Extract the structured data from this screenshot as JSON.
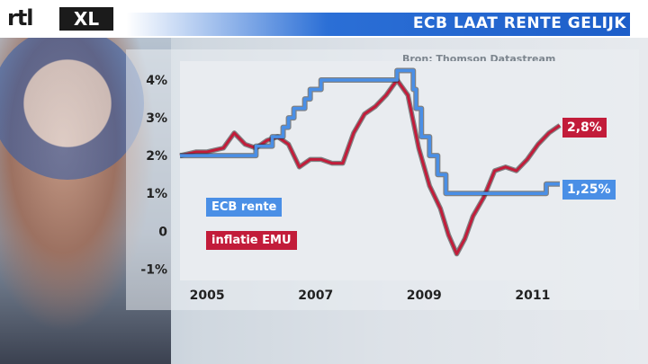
{
  "header": {
    "title": "ECB LAAT RENTE GELIJK",
    "logo_part1": "rtl",
    "logo_part2": "XL"
  },
  "source": "Bron: Thomson Datastream",
  "legend": {
    "ecb": "ECB rente",
    "inflation": "inflatie EMU"
  },
  "end_labels": {
    "inflation": "2,8%",
    "ecb": "1,25%"
  },
  "colors": {
    "ecb": "#4a8fe6",
    "inflation": "#c21c3a",
    "title_bar": "#1d5ec9"
  },
  "chart_data": {
    "type": "line",
    "title": "ECB LAAT RENTE GELIJK",
    "xlabel": "",
    "ylabel": "",
    "x_ticks": [
      "2005",
      "2007",
      "2009",
      "2011"
    ],
    "y_ticks": [
      "4%",
      "3%",
      "2%",
      "1%",
      "0",
      "-1%"
    ],
    "y_tick_values": [
      4,
      3,
      2,
      1,
      0,
      -1
    ],
    "xlim": [
      2004.5,
      2011.5
    ],
    "ylim": [
      -1.3,
      4.5
    ],
    "grid": false,
    "series": [
      {
        "name": "ECB rente",
        "kind": "step",
        "x": [
          2004.5,
          2005.9,
          2006.2,
          2006.4,
          2006.5,
          2006.6,
          2006.8,
          2006.9,
          2007.1,
          2007.5,
          2008.5,
          2008.8,
          2008.85,
          2008.95,
          2009.1,
          2009.25,
          2009.4,
          2011.25,
          2011.5
        ],
        "y": [
          2.0,
          2.25,
          2.5,
          2.75,
          3.0,
          3.25,
          3.5,
          3.75,
          4.0,
          4.0,
          4.25,
          3.75,
          3.25,
          2.5,
          2.0,
          1.5,
          1.0,
          1.25,
          1.25
        ]
      },
      {
        "name": "inflatie EMU",
        "kind": "line",
        "x": [
          2004.5,
          2004.8,
          2005.0,
          2005.3,
          2005.5,
          2005.7,
          2005.9,
          2006.1,
          2006.3,
          2006.5,
          2006.7,
          2006.9,
          2007.1,
          2007.3,
          2007.5,
          2007.7,
          2007.9,
          2008.1,
          2008.3,
          2008.5,
          2008.7,
          2008.9,
          2009.1,
          2009.3,
          2009.45,
          2009.6,
          2009.75,
          2009.9,
          2010.1,
          2010.3,
          2010.5,
          2010.7,
          2010.9,
          2011.1,
          2011.3,
          2011.5
        ],
        "y": [
          2.0,
          2.1,
          2.1,
          2.2,
          2.6,
          2.3,
          2.2,
          2.4,
          2.5,
          2.3,
          1.7,
          1.9,
          1.9,
          1.8,
          1.8,
          2.6,
          3.1,
          3.3,
          3.6,
          4.0,
          3.6,
          2.2,
          1.2,
          0.6,
          -0.1,
          -0.6,
          -0.2,
          0.4,
          0.9,
          1.6,
          1.7,
          1.6,
          1.9,
          2.3,
          2.6,
          2.8
        ]
      }
    ]
  }
}
